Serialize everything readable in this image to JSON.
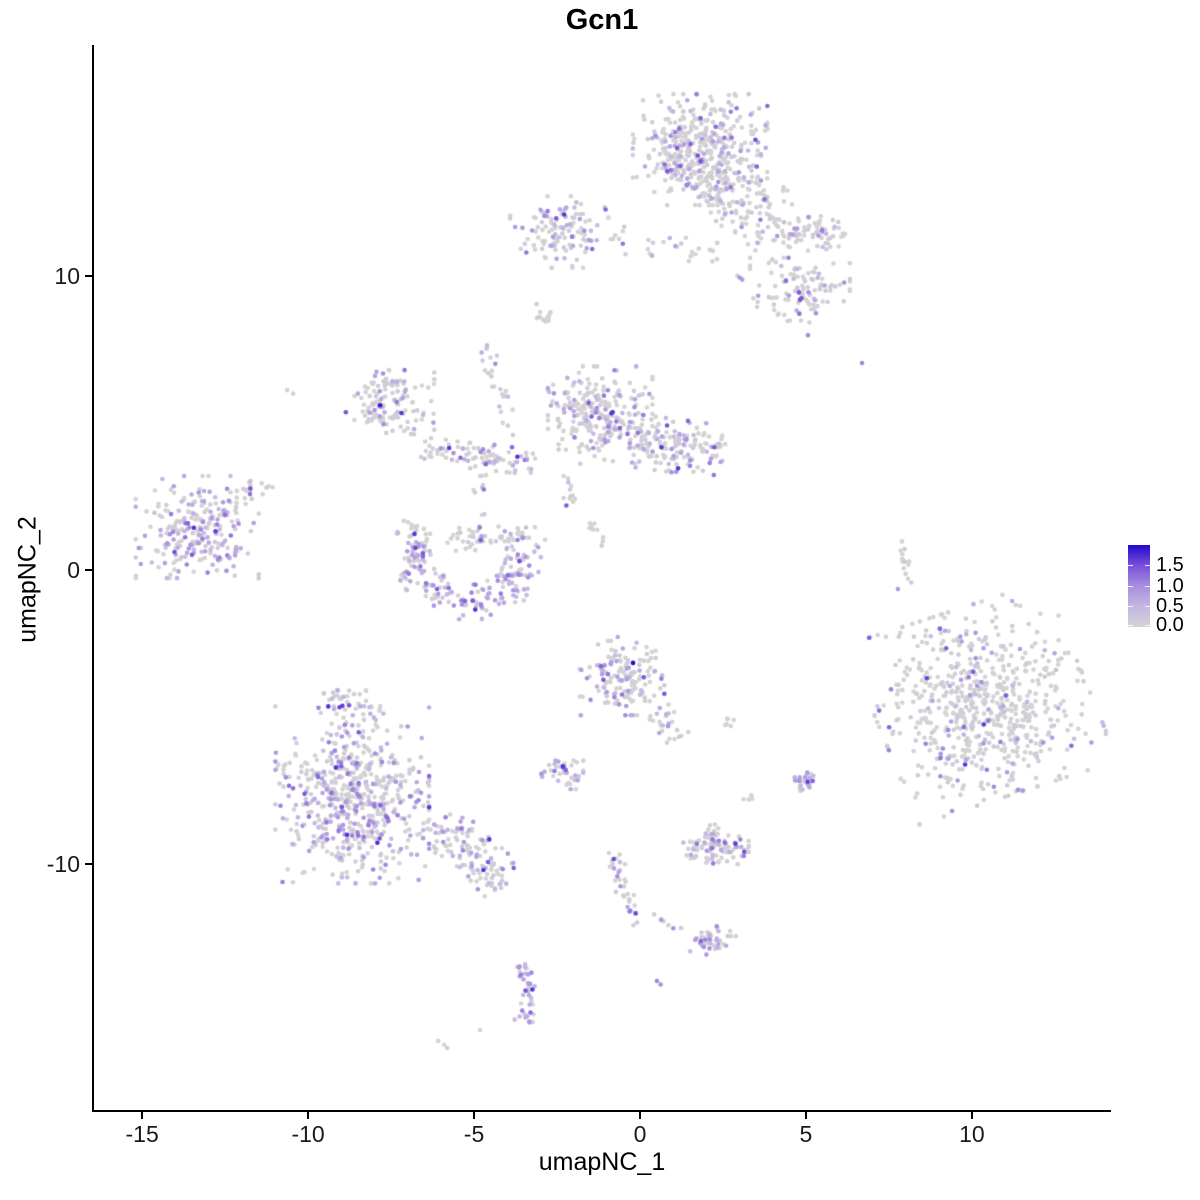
{
  "title": "Gcn1",
  "axis": {
    "x": {
      "label": "umapNC_1",
      "ticks": [
        -15,
        -10,
        -5,
        0,
        5,
        10
      ]
    },
    "y": {
      "label": "umapNC_2",
      "ticks": [
        -10,
        0,
        10
      ]
    }
  },
  "legend": {
    "labels": [
      "1.5",
      "1.0",
      "0.5",
      "0.0"
    ]
  },
  "chart_data": {
    "type": "scatter",
    "title": "Gcn1",
    "xlabel": "umapNC_1",
    "ylabel": "umapNC_2",
    "x_range": [
      -16.45,
      14.16
    ],
    "y_range": [
      -18.37,
      17.86
    ],
    "point_radius_px": 2.3,
    "value_range": [
      0,
      1.6
    ],
    "colors": {
      "low": "#d3d3d3",
      "stops": [
        [
          0,
          "#d3d3d3"
        ],
        [
          0.25,
          "#c3b7e3"
        ],
        [
          0.5,
          "#a78fdf"
        ],
        [
          0.75,
          "#7a4fd8"
        ],
        [
          1,
          "#2008d0"
        ]
      ]
    },
    "clusters": [
      {
        "id": "top-main-blob",
        "shape": "blob",
        "c": [
          1.81,
          14.3
        ],
        "r": [
          1.75,
          1.63
        ],
        "n": 450,
        "pf": 0.2
      },
      {
        "id": "top-tail-band",
        "shape": "band",
        "p1": [
          2.26,
          13.3
        ],
        "p2": [
          4.8,
          11.2
        ],
        "w": 0.55,
        "n": 140,
        "pf": 0.1
      },
      {
        "id": "topright-lower",
        "shape": "blob",
        "c": [
          4.82,
          9.52
        ],
        "r": [
          1.3,
          0.95
        ],
        "n": 110,
        "pf": 0.22
      },
      {
        "id": "topright-upper",
        "shape": "blob",
        "c": [
          5.42,
          11.5
        ],
        "r": [
          0.75,
          0.55
        ],
        "n": 45,
        "pf": 0.18
      },
      {
        "id": "topleft-small",
        "shape": "blob",
        "c": [
          -2.41,
          11.5
        ],
        "r": [
          1.3,
          1.05
        ],
        "n": 120,
        "pf": 0.28
      },
      {
        "id": "top-string",
        "shape": "band",
        "p1": [
          -0.9,
          11.3
        ],
        "p2": [
          2.4,
          10.9
        ],
        "w": 0.25,
        "n": 30,
        "pf": 0.15
      },
      {
        "id": "pair-midtop",
        "shape": "dots",
        "pts": [
          [
            3.0,
            9.95,
            0.75
          ],
          [
            3.08,
            9.88,
            0.7
          ],
          [
            2.93,
            10.02,
            0
          ]
        ]
      },
      {
        "id": "lone-dot-a",
        "shape": "dots",
        "pts": [
          [
            5.06,
            7.99,
            0.8
          ]
        ]
      },
      {
        "id": "lone-dot-b",
        "shape": "dots",
        "pts": [
          [
            6.69,
            7.04,
            0.85
          ]
        ]
      },
      {
        "id": "comma-blob",
        "shape": "blob",
        "c": [
          -2.86,
          8.65
        ],
        "r": [
          0.22,
          0.42
        ],
        "n": 12,
        "pf": 0
      },
      {
        "id": "strand-upper",
        "shape": "band",
        "p1": [
          -4.64,
          7.65
        ],
        "p2": [
          -3.77,
          4.42
        ],
        "w": 0.15,
        "n": 26,
        "pf": 0.3
      },
      {
        "id": "strand-upper2",
        "shape": "band",
        "p1": [
          -4.9,
          3.3
        ],
        "p2": [
          -4.6,
          1.9
        ],
        "w": 0.12,
        "n": 10,
        "pf": 0.3
      },
      {
        "id": "wing-blob",
        "shape": "blob",
        "c": [
          -7.53,
          5.7
        ],
        "r": [
          1.15,
          0.95
        ],
        "n": 130,
        "pf": 0.22
      },
      {
        "id": "wing-arm",
        "shape": "band",
        "p1": [
          -6.63,
          4.08
        ],
        "p2": [
          -3.16,
          3.67
        ],
        "w": 0.22,
        "n": 95,
        "pf": 0.25
      },
      {
        "id": "crescent",
        "shape": "arc",
        "c": [
          -5.12,
          0.6
        ],
        "r0": 1.7,
        "rs": 0.3,
        "a0": 150,
        "a1": 390,
        "n": 230,
        "pf": 0.38
      },
      {
        "id": "crescent-fill",
        "shape": "blob",
        "c": [
          -5.0,
          1.1
        ],
        "r": [
          0.8,
          0.5
        ],
        "n": 40,
        "pf": 0.1
      },
      {
        "id": "mid-main",
        "shape": "blob",
        "c": [
          -1.2,
          5.27
        ],
        "r": [
          1.36,
          1.43
        ],
        "n": 260,
        "pf": 0.24
      },
      {
        "id": "mid-arm",
        "shape": "band",
        "p1": [
          -0.15,
          4.4
        ],
        "p2": [
          2.56,
          4.0
        ],
        "w": 0.45,
        "n": 150,
        "pf": 0.3
      },
      {
        "id": "mid-strand",
        "shape": "band",
        "p1": [
          -2.23,
          3.37
        ],
        "p2": [
          -2.1,
          2.2
        ],
        "w": 0.1,
        "n": 12,
        "pf": 0.2
      },
      {
        "id": "mid-greys",
        "shape": "band",
        "p1": [
          -1.57,
          1.7
        ],
        "p2": [
          -1.05,
          0.75
        ],
        "w": 0.1,
        "n": 9,
        "pf": 0
      },
      {
        "id": "left-main",
        "shape": "blob",
        "c": [
          -13.34,
          1.46
        ],
        "r": [
          1.6,
          1.5
        ],
        "n": 240,
        "pf": 0.45
      },
      {
        "id": "left-tail",
        "shape": "band",
        "p1": [
          -12.2,
          2.38
        ],
        "p2": [
          -11.2,
          3.06
        ],
        "w": 0.18,
        "n": 18,
        "pf": 0.25
      },
      {
        "id": "left-lone-pair",
        "shape": "dots",
        "pts": [
          [
            -10.63,
            6.12,
            0
          ],
          [
            -10.45,
            6.0,
            0
          ]
        ]
      },
      {
        "id": "bottomleft-main",
        "shape": "blob",
        "c": [
          -8.67,
          -7.65
        ],
        "r": [
          2.0,
          2.6
        ],
        "n": 600,
        "pf": 0.38
      },
      {
        "id": "bottomleft-nub",
        "shape": "blob",
        "c": [
          -8.89,
          -4.42
        ],
        "r": [
          0.55,
          0.45
        ],
        "n": 30,
        "pf": 0.3
      },
      {
        "id": "bottomleft-tail",
        "shape": "band",
        "p1": [
          -6.2,
          -8.5
        ],
        "p2": [
          -4.07,
          -10.71
        ],
        "w": 0.4,
        "n": 130,
        "pf": 0.32
      },
      {
        "id": "right-main",
        "shape": "blob",
        "c": [
          10.3,
          -4.52
        ],
        "r": [
          2.75,
          2.8
        ],
        "n": 680,
        "pf": 0.13,
        "rot": 20
      },
      {
        "id": "right-strand",
        "shape": "band",
        "p1": [
          7.89,
          1.02
        ],
        "p2": [
          8.07,
          -0.51
        ],
        "w": 0.08,
        "n": 14,
        "pf": 0
      },
      {
        "id": "right-strand-dot",
        "shape": "dots",
        "pts": [
          [
            7.77,
            -0.65,
            0.7
          ]
        ]
      },
      {
        "id": "center-low-blob",
        "shape": "blob",
        "c": [
          -0.54,
          -3.61
        ],
        "r": [
          1.1,
          1.15
        ],
        "n": 150,
        "pf": 0.3
      },
      {
        "id": "center-navy-dot",
        "shape": "dots",
        "pts": [
          [
            -0.21,
            -3.16,
            1.6
          ]
        ]
      },
      {
        "id": "center-low-tail",
        "shape": "band",
        "p1": [
          0.45,
          -4.76
        ],
        "p2": [
          1.14,
          -5.78
        ],
        "w": 0.22,
        "n": 25,
        "pf": 0.25
      },
      {
        "id": "small-purple-left",
        "shape": "blob",
        "c": [
          -2.38,
          -6.97
        ],
        "r": [
          0.58,
          0.42
        ],
        "n": 42,
        "pf": 0.55
      },
      {
        "id": "grey-pair-mid",
        "shape": "blob",
        "c": [
          2.71,
          -5.1
        ],
        "r": [
          0.22,
          0.18
        ],
        "n": 6,
        "pf": 0
      },
      {
        "id": "small-purple-right",
        "shape": "blob",
        "c": [
          4.97,
          -7.18
        ],
        "r": [
          0.36,
          0.38
        ],
        "n": 26,
        "pf": 0.5
      },
      {
        "id": "grey-pair-right",
        "shape": "blob",
        "c": [
          3.25,
          -7.72
        ],
        "r": [
          0.18,
          0.12
        ],
        "n": 4,
        "pf": 0
      },
      {
        "id": "flat-cluster",
        "shape": "blob",
        "c": [
          2.29,
          -9.49
        ],
        "r": [
          0.85,
          0.45
        ],
        "n": 95,
        "pf": 0.35
      },
      {
        "id": "flat-nub",
        "shape": "band",
        "p1": [
          2.14,
          -8.6
        ],
        "p2": [
          2.2,
          -9.1
        ],
        "w": 0.1,
        "n": 10,
        "pf": 0.3
      },
      {
        "id": "lower-strand",
        "shape": "band",
        "p1": [
          -0.96,
          -9.35
        ],
        "p2": [
          -0.06,
          -12.07
        ],
        "w": 0.14,
        "n": 34,
        "pf": 0.4
      },
      {
        "id": "lower-connector",
        "shape": "band",
        "p1": [
          0.36,
          -11.84
        ],
        "p2": [
          1.36,
          -12.35
        ],
        "w": 0.1,
        "n": 8,
        "pf": 0.2
      },
      {
        "id": "lower-cluster",
        "shape": "blob",
        "c": [
          2.17,
          -12.59
        ],
        "r": [
          0.62,
          0.45
        ],
        "n": 45,
        "pf": 0.3
      },
      {
        "id": "j-strand-1",
        "shape": "band",
        "p1": [
          -3.55,
          -13.33
        ],
        "p2": [
          -3.3,
          -14.6
        ],
        "w": 0.14,
        "n": 24,
        "pf": 0.7
      },
      {
        "id": "j-strand-2",
        "shape": "band",
        "p1": [
          -3.3,
          -14.6
        ],
        "p2": [
          -3.52,
          -15.37
        ],
        "w": 0.14,
        "n": 16,
        "pf": 0.7
      },
      {
        "id": "bottom-greys",
        "shape": "dots",
        "pts": [
          [
            -4.82,
            -15.65,
            0
          ],
          [
            -6.08,
            -16.02,
            0
          ],
          [
            -5.9,
            -16.15,
            0
          ],
          [
            -5.81,
            -16.26,
            0.1
          ]
        ]
      },
      {
        "id": "bottom-purple-pair",
        "shape": "dots",
        "pts": [
          [
            0.51,
            -13.98,
            0.85
          ],
          [
            0.62,
            -14.1,
            0.8
          ]
        ]
      }
    ]
  }
}
